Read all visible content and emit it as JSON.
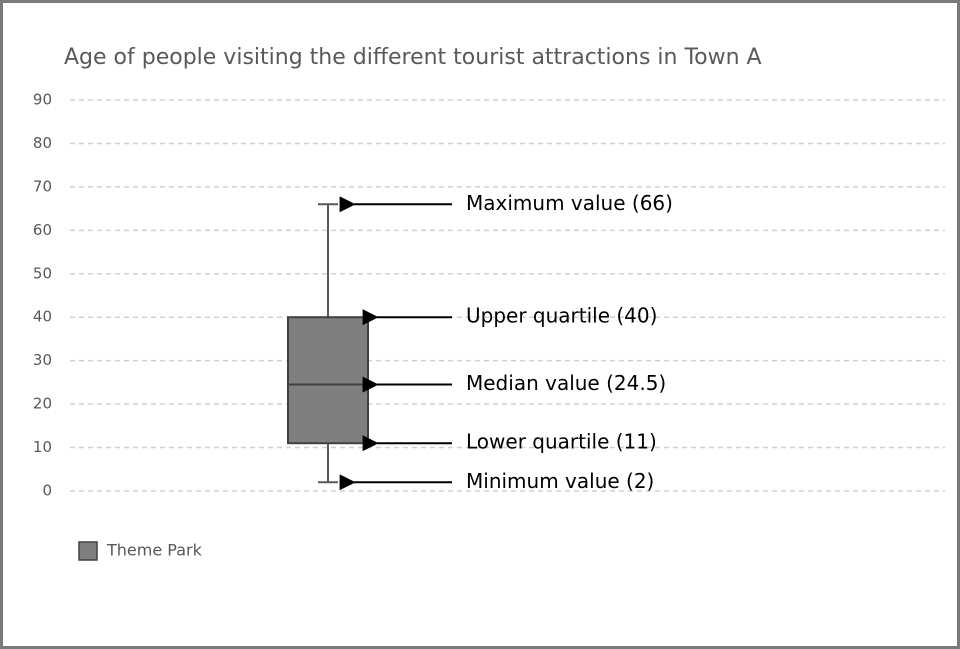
{
  "chart_data": {
    "type": "box",
    "title": "Age of people visiting the different tourist attractions in Town A",
    "ylim": [
      0,
      90
    ],
    "yticks": [
      0,
      10,
      20,
      30,
      40,
      50,
      60,
      70,
      80,
      90
    ],
    "grid": true,
    "legend": "bottom-left",
    "series": [
      {
        "name": "Theme Park",
        "color": "#7f7f7f",
        "min": 2,
        "q1": 11,
        "median": 24.5,
        "q3": 40,
        "max": 66
      }
    ],
    "annotations": {
      "max": "Maximum value (66)",
      "q3": "Upper quartile (40)",
      "median": "Median value (24.5)",
      "q1": "Lower quartile (11)",
      "min": "Minimum value  (2)"
    }
  }
}
